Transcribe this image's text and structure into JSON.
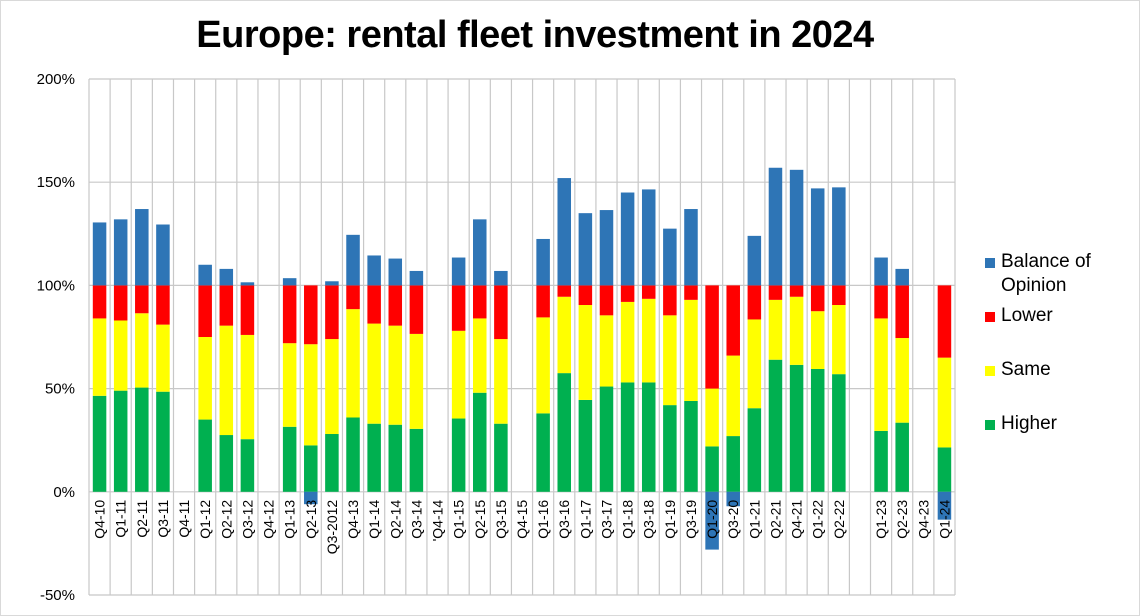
{
  "chart_data": {
    "type": "bar",
    "stacked": true,
    "title": "Europe: rental fleet investment in 2024",
    "xlabel": "",
    "ylabel": "",
    "ylim": [
      -50,
      200
    ],
    "yticks": [
      -50,
      0,
      50,
      100,
      150,
      200
    ],
    "ytick_labels": [
      "-50%",
      "0%",
      "50%",
      "100%",
      "150%",
      "200%"
    ],
    "grid": true,
    "legend_position": "right",
    "categories": [
      "Q4-10",
      "Q1-11",
      "Q2-11",
      "Q3-11",
      "Q4-11",
      "Q1-12",
      "Q2-12",
      "Q3-12",
      "Q4-12",
      "Q1-13",
      "Q2-13",
      "Q3-2012",
      "Q4-13",
      "Q1-14",
      "Q2-14",
      "Q3-14",
      "'Q4-14",
      "Q1-15",
      "Q2-15",
      "Q3-15",
      "Q4-15",
      "Q1-16",
      "Q3-16",
      "Q1-17",
      "Q3-17",
      "Q1-18",
      "Q3-18",
      "Q1-19",
      "Q3-19",
      "Q1-20",
      "Q3-20",
      "Q1-21",
      "Q2-21",
      "Q4-21",
      "Q1-22",
      "Q2-22",
      "",
      "Q1-23",
      "Q2-23",
      "Q4-23",
      "Q1-24"
    ],
    "series": [
      {
        "name": "Higher",
        "color": "#00b050",
        "values": [
          46.5,
          49,
          50.5,
          48.5,
          null,
          35,
          27.5,
          25.5,
          null,
          31.5,
          22.5,
          28,
          36,
          33,
          32.5,
          30.5,
          null,
          35.5,
          48,
          33,
          null,
          38,
          57.5,
          44.5,
          51,
          53,
          53,
          42,
          44,
          22,
          27,
          40.5,
          64,
          61.5,
          59.5,
          57,
          null,
          29.5,
          33.5,
          null,
          21.5
        ]
      },
      {
        "name": "Same",
        "color": "#ffff00",
        "values": [
          37.5,
          34,
          36,
          32.5,
          null,
          40,
          53,
          50.5,
          null,
          40.5,
          49,
          46,
          52.5,
          48.5,
          48,
          46,
          null,
          42.5,
          36,
          41,
          null,
          46.5,
          37,
          46,
          34.5,
          39,
          40.5,
          43.5,
          49,
          28,
          39,
          43,
          29,
          33,
          28,
          33.5,
          null,
          54.5,
          41,
          null,
          43.5
        ]
      },
      {
        "name": "Lower",
        "color": "#ff0000",
        "values": [
          16,
          17,
          13.5,
          19,
          null,
          25,
          19.5,
          24,
          null,
          28,
          28.5,
          26,
          11.5,
          18.5,
          19.5,
          23.5,
          null,
          22,
          16,
          26,
          null,
          15.5,
          5.5,
          9.5,
          14.5,
          8,
          6.5,
          14.5,
          7,
          50,
          34,
          16.5,
          7,
          5.5,
          12.5,
          9.5,
          null,
          16,
          25.5,
          null,
          35
        ]
      },
      {
        "name": "Balance of Opinion",
        "color": "#2e75b6",
        "values": [
          30.5,
          32,
          37,
          29.5,
          null,
          10,
          8,
          1.5,
          null,
          3.5,
          -6,
          2,
          24.5,
          14.5,
          13,
          7,
          null,
          13.5,
          32,
          7,
          null,
          22.5,
          52,
          35,
          36.5,
          45,
          46.5,
          27.5,
          37,
          -28,
          -7,
          24,
          57,
          56,
          47,
          47.5,
          null,
          13.5,
          8,
          null,
          -13.5
        ]
      }
    ]
  },
  "legend": [
    {
      "label": "Balance of Opinion",
      "label_line1": "Balance of",
      "label_line2": "Opinion",
      "color": "#2e75b6"
    },
    {
      "label": "Lower",
      "color": "#ff0000"
    },
    {
      "label": "Same",
      "color": "#ffff00"
    },
    {
      "label": "Higher",
      "color": "#00b050"
    }
  ]
}
